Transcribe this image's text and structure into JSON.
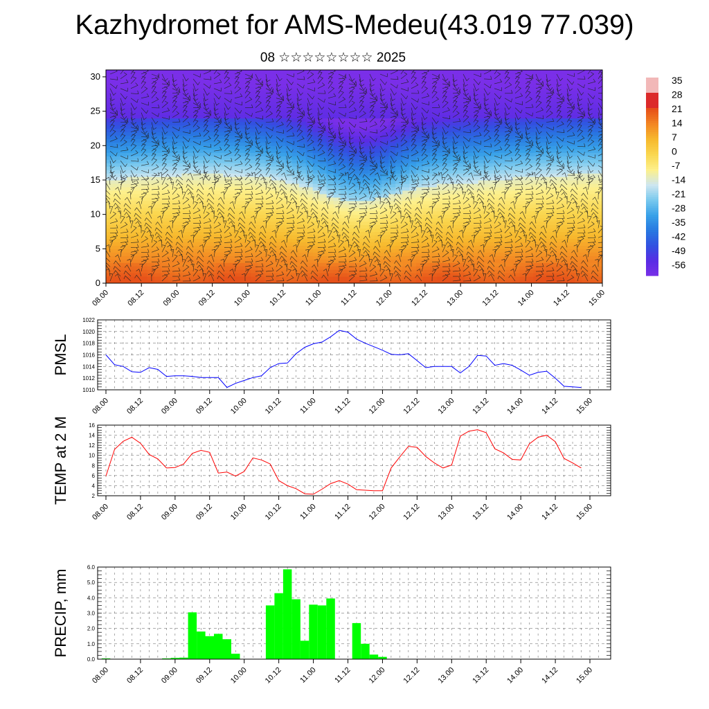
{
  "title": "Kazhydromet for AMS-Medeu(43.019 77.039)",
  "subtitle": "08 ☆☆☆☆☆☆☆☆ 2025",
  "x_ticks": [
    "08.00",
    "08.12",
    "09.00",
    "09.12",
    "10.00",
    "10.12",
    "11.00",
    "11.12",
    "12.00",
    "12.12",
    "13.00",
    "13.12",
    "14.00",
    "14.12",
    "15.00"
  ],
  "colorbar": {
    "labels": [
      "35",
      "28",
      "21",
      "14",
      "7",
      "0",
      "-7",
      "-14",
      "-21",
      "-28",
      "-35",
      "-42",
      "-49",
      "-56"
    ],
    "colors": [
      "#f2b8b8",
      "#e03b3b",
      "#d41a1a",
      "#e8561c",
      "#f07a1e",
      "#f5a623",
      "#f7c640",
      "#fdf08a",
      "#bfe3f0",
      "#5bbde8",
      "#2a8fe0",
      "#2b5ce0",
      "#4a2fe0",
      "#7a2fe0"
    ]
  },
  "chart_data": [
    {
      "type": "heatmap",
      "title": "",
      "xlabel": "",
      "ylabel": "",
      "x_range": [
        "08.00",
        "15.00"
      ],
      "ylim": [
        0,
        31
      ],
      "y_ticks": [
        0,
        5,
        10,
        15,
        20,
        25,
        30
      ],
      "colorbar_range": [
        -56,
        35
      ],
      "bands": [
        {
          "z_bottom": 0,
          "z_top": 5,
          "temp_range": [
            14,
            21
          ]
        },
        {
          "z_bottom": 5,
          "z_top": 10,
          "temp_range": [
            0,
            14
          ]
        },
        {
          "z_bottom": 10,
          "z_top": 15,
          "temp_range": [
            -14,
            0
          ]
        },
        {
          "z_bottom": 15,
          "z_top": 20,
          "temp_range": [
            -35,
            -14
          ]
        },
        {
          "z_bottom": 20,
          "z_top": 25,
          "temp_range": [
            -49,
            -35
          ]
        },
        {
          "z_bottom": 25,
          "z_top": 31,
          "temp_range": [
            -56,
            -49
          ]
        }
      ],
      "overlay": "wind barbs"
    },
    {
      "type": "line",
      "ylabel": "PMSL",
      "ylim": [
        1010,
        1022
      ],
      "y_ticks": [
        1010,
        1012,
        1014,
        1016,
        1018,
        1020,
        1022
      ],
      "color": "#0000ff",
      "x": [
        0,
        3,
        6,
        9,
        12,
        15,
        18,
        21,
        24,
        27,
        30,
        33,
        36,
        39,
        42,
        45,
        48,
        51,
        54,
        57,
        60,
        63,
        66,
        69,
        72,
        75,
        78,
        81,
        84,
        87,
        90,
        93,
        96,
        99,
        102,
        105,
        108,
        111,
        114,
        117,
        120,
        123,
        126,
        129,
        132,
        135,
        138,
        141,
        144,
        147,
        150,
        153,
        156,
        159,
        162,
        165
      ],
      "values": [
        1016.0,
        1014.3,
        1014.0,
        1013.1,
        1013.0,
        1013.8,
        1013.5,
        1012.3,
        1012.4,
        1012.4,
        1012.3,
        1012.1,
        1012.1,
        1012.1,
        1010.4,
        1011.1,
        1011.6,
        1012.1,
        1012.4,
        1013.8,
        1014.5,
        1014.6,
        1016.2,
        1017.3,
        1017.9,
        1018.2,
        1019.1,
        1020.2,
        1019.9,
        1018.7,
        1018.0,
        1017.4,
        1016.8,
        1016.1,
        1016.0,
        1016.2,
        1015.0,
        1013.8,
        1014.0,
        1014.0,
        1014.0,
        1012.9,
        1014.0,
        1015.9,
        1015.8,
        1014.2,
        1014.5,
        1014.2,
        1013.4,
        1012.5,
        1013.0,
        1013.2,
        1012.0,
        1010.6,
        1010.5,
        1010.4
      ]
    },
    {
      "type": "line",
      "ylabel": "TEMP at 2 M",
      "ylim": [
        2,
        16
      ],
      "y_ticks": [
        2,
        4,
        6,
        8,
        10,
        12,
        14,
        16
      ],
      "color": "#ff0000",
      "x": [
        0,
        3,
        6,
        9,
        12,
        15,
        18,
        21,
        24,
        27,
        30,
        33,
        36,
        39,
        42,
        45,
        48,
        51,
        54,
        57,
        60,
        63,
        66,
        69,
        72,
        75,
        78,
        81,
        84,
        87,
        90,
        93,
        96,
        99,
        102,
        105,
        108,
        111,
        114,
        117,
        120,
        123,
        126,
        129,
        132,
        135,
        138,
        141,
        144,
        147,
        150,
        153,
        156,
        159,
        162,
        165
      ],
      "values": [
        5.9,
        11.2,
        12.8,
        13.6,
        12.4,
        10.2,
        9.3,
        7.5,
        7.6,
        8.3,
        10.4,
        11.0,
        10.6,
        6.5,
        6.7,
        5.9,
        6.8,
        9.5,
        9.1,
        8.3,
        5.0,
        4.0,
        3.4,
        2.4,
        2.3,
        3.3,
        4.4,
        5.0,
        4.3,
        3.2,
        3.1,
        3.0,
        3.0,
        7.5,
        9.7,
        11.8,
        11.6,
        9.8,
        8.5,
        7.5,
        8.1,
        13.8,
        14.8,
        15.1,
        14.5,
        11.3,
        10.5,
        9.2,
        9.1,
        12.3,
        13.6,
        14.0,
        12.7,
        9.4,
        8.5,
        7.5
      ]
    },
    {
      "type": "bar",
      "ylabel": "PRECIP, mm",
      "ylim": [
        0,
        6
      ],
      "y_ticks": [
        "0.0",
        "1.0",
        "2.0",
        "3.0",
        "4.0",
        "5.0",
        "6.0"
      ],
      "color": "#00ff00",
      "x": [
        0,
        3,
        6,
        9,
        12,
        15,
        18,
        21,
        24,
        27,
        30,
        33,
        36,
        39,
        42,
        45,
        48,
        51,
        54,
        57,
        60,
        63,
        66,
        69,
        72,
        75,
        78,
        81,
        84,
        87,
        90,
        93,
        96,
        99,
        102,
        105,
        108,
        111,
        114,
        117,
        120,
        123,
        126,
        129,
        132,
        135,
        138,
        141,
        144,
        147,
        150,
        153,
        156,
        159,
        162,
        165
      ],
      "values": [
        0.05,
        0,
        0,
        0,
        0,
        0,
        0,
        0.05,
        0.08,
        0.1,
        3.05,
        1.8,
        1.5,
        1.65,
        1.3,
        0.35,
        0,
        0,
        0,
        3.5,
        4.3,
        5.85,
        3.9,
        1.2,
        3.55,
        3.5,
        3.95,
        0,
        0,
        2.35,
        1.0,
        0.3,
        0.15,
        0,
        0,
        0,
        0,
        0,
        0,
        0,
        0,
        0,
        0,
        0,
        0,
        0,
        0,
        0,
        0,
        0,
        0,
        0,
        0,
        0,
        0,
        0
      ]
    }
  ]
}
